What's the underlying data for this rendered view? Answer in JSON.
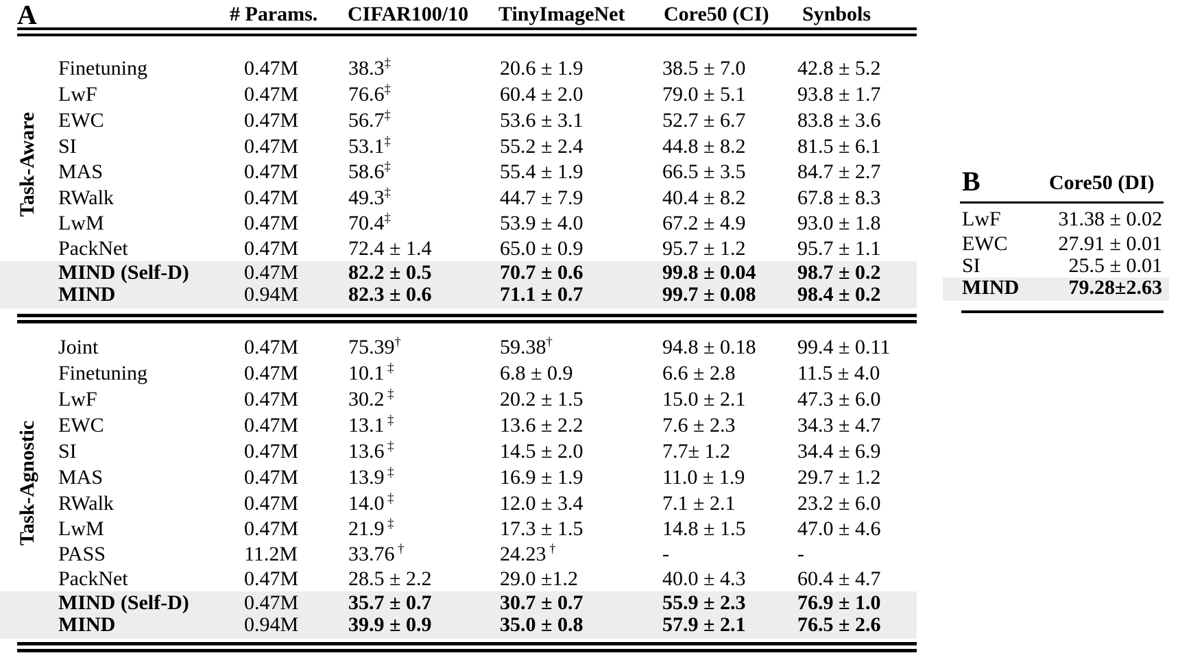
{
  "tableA": {
    "label": "A",
    "columns": [
      "# Params.",
      "CIFAR100/10",
      "TinyImageNet",
      "Core50 (CI)",
      "Synbols"
    ],
    "highlight_color": "#ededed",
    "sections": [
      {
        "side_label": "Task-Aware",
        "rows": [
          {
            "method": "Finetuning",
            "params": "0.47M",
            "bold": false,
            "highlight": false,
            "cells": [
              {
                "t": "38.3",
                "sup": "‡"
              },
              {
                "t": "20.6 ± 1.9"
              },
              {
                "t": "38.5 ± 7.0"
              },
              {
                "t": "42.8 ± 5.2"
              }
            ]
          },
          {
            "method": "LwF",
            "params": "0.47M",
            "bold": false,
            "highlight": false,
            "cells": [
              {
                "t": "76.6",
                "sup": "‡"
              },
              {
                "t": "60.4 ± 2.0"
              },
              {
                "t": "79.0 ± 5.1"
              },
              {
                "t": "93.8 ± 1.7"
              }
            ]
          },
          {
            "method": "EWC",
            "params": "0.47M",
            "bold": false,
            "highlight": false,
            "cells": [
              {
                "t": "56.7",
                "sup": "‡"
              },
              {
                "t": "53.6 ± 3.1"
              },
              {
                "t": "52.7 ± 6.7"
              },
              {
                "t": "83.8 ± 3.6"
              }
            ]
          },
          {
            "method": "SI",
            "params": "0.47M",
            "bold": false,
            "highlight": false,
            "cells": [
              {
                "t": "53.1",
                "sup": "‡"
              },
              {
                "t": "55.2 ± 2.4"
              },
              {
                "t": "44.8 ± 8.2"
              },
              {
                "t": "81.5 ± 6.1"
              }
            ]
          },
          {
            "method": "MAS",
            "params": "0.47M",
            "bold": false,
            "highlight": false,
            "cells": [
              {
                "t": "58.6",
                "sup": "‡"
              },
              {
                "t": "55.4 ± 1.9"
              },
              {
                "t": "66.5 ± 3.5"
              },
              {
                "t": "84.7 ± 2.7"
              }
            ]
          },
          {
            "method": "RWalk",
            "params": "0.47M",
            "bold": false,
            "highlight": false,
            "cells": [
              {
                "t": "49.3",
                "sup": "‡"
              },
              {
                "t": "44.7 ± 7.9"
              },
              {
                "t": "40.4 ± 8.2"
              },
              {
                "t": "67.8 ± 8.3"
              }
            ]
          },
          {
            "method": "LwM",
            "params": "0.47M",
            "bold": false,
            "highlight": false,
            "cells": [
              {
                "t": "70.4",
                "sup": "‡"
              },
              {
                "t": "53.9 ± 4.0"
              },
              {
                "t": "67.2 ± 4.9"
              },
              {
                "t": "93.0 ± 1.8"
              }
            ]
          },
          {
            "method": "PackNet",
            "params": "0.47M",
            "bold": false,
            "highlight": false,
            "cells": [
              {
                "t": "72.4 ± 1.4"
              },
              {
                "t": "65.0 ± 0.9"
              },
              {
                "t": "95.7 ± 1.2"
              },
              {
                "t": "95.7 ± 1.1"
              }
            ]
          },
          {
            "method": "MIND (Self-D)",
            "params": "0.47M",
            "bold": true,
            "highlight": true,
            "cells": [
              {
                "t": "82.2 ± 0.5"
              },
              {
                "t": "70.7 ± 0.6"
              },
              {
                "t": "99.8 ± 0.04"
              },
              {
                "t": "98.7 ± 0.2"
              }
            ]
          },
          {
            "method": "MIND",
            "params": "0.94M",
            "bold": true,
            "highlight": true,
            "cells": [
              {
                "t": "82.3 ± 0.6"
              },
              {
                "t": "71.1 ± 0.7"
              },
              {
                "t": "99.7 ± 0.08"
              },
              {
                "t": "98.4 ± 0.2"
              }
            ]
          }
        ]
      },
      {
        "side_label": "Task-Agnostic",
        "rows": [
          {
            "method": "Joint",
            "params": "0.47M",
            "bold": false,
            "highlight": false,
            "cells": [
              {
                "t": "75.39",
                "sup": "†"
              },
              {
                "t": "59.38",
                "sup": "†"
              },
              {
                "t": "94.8 ± 0.18"
              },
              {
                "t": "99.4 ± 0.11"
              }
            ]
          },
          {
            "method": "Finetuning",
            "params": "0.47M",
            "bold": false,
            "highlight": false,
            "cells": [
              {
                "t": "10.1",
                "sup": " ‡"
              },
              {
                "t": "6.8 ± 0.9"
              },
              {
                "t": "6.6 ± 2.8"
              },
              {
                "t": "11.5 ± 4.0"
              }
            ]
          },
          {
            "method": "LwF",
            "params": "0.47M",
            "bold": false,
            "highlight": false,
            "cells": [
              {
                "t": "30.2",
                "sup": " ‡"
              },
              {
                "t": "20.2 ± 1.5"
              },
              {
                "t": "15.0 ± 2.1"
              },
              {
                "t": "47.3 ± 6.0"
              }
            ]
          },
          {
            "method": "EWC",
            "params": "0.47M",
            "bold": false,
            "highlight": false,
            "cells": [
              {
                "t": "13.1",
                "sup": " ‡"
              },
              {
                "t": "13.6 ± 2.2"
              },
              {
                "t": "7.6 ± 2.3"
              },
              {
                "t": "34.3 ± 4.7"
              }
            ]
          },
          {
            "method": "SI",
            "params": "0.47M",
            "bold": false,
            "highlight": false,
            "cells": [
              {
                "t": "13.6",
                "sup": " ‡"
              },
              {
                "t": "14.5 ± 2.0"
              },
              {
                "t": "7.7± 1.2"
              },
              {
                "t": "34.4 ± 6.9"
              }
            ]
          },
          {
            "method": "MAS",
            "params": "0.47M",
            "bold": false,
            "highlight": false,
            "cells": [
              {
                "t": "13.9",
                "sup": " ‡"
              },
              {
                "t": "16.9 ± 1.9"
              },
              {
                "t": "11.0 ± 1.9"
              },
              {
                "t": "29.7 ± 1.2"
              }
            ]
          },
          {
            "method": "RWalk",
            "params": "0.47M",
            "bold": false,
            "highlight": false,
            "cells": [
              {
                "t": "14.0",
                "sup": " ‡"
              },
              {
                "t": "12.0 ± 3.4"
              },
              {
                "t": "7.1 ± 2.1"
              },
              {
                "t": "23.2 ± 6.0"
              }
            ]
          },
          {
            "method": "LwM",
            "params": "0.47M",
            "bold": false,
            "highlight": false,
            "cells": [
              {
                "t": "21.9",
                "sup": " ‡"
              },
              {
                "t": "17.3 ± 1.5"
              },
              {
                "t": "14.8 ± 1.5"
              },
              {
                "t": "47.0 ± 4.6"
              }
            ]
          },
          {
            "method": "PASS",
            "params": "11.2M",
            "bold": false,
            "highlight": false,
            "cells": [
              {
                "t": "33.76",
                "sup": " †"
              },
              {
                "t": "24.23",
                "sup": " †"
              },
              {
                "t": "-"
              },
              {
                "t": "-"
              }
            ]
          },
          {
            "method": "PackNet",
            "params": "0.47M",
            "bold": false,
            "highlight": false,
            "cells": [
              {
                "t": "28.5 ± 2.2"
              },
              {
                "t": "29.0 ±1.2"
              },
              {
                "t": "40.0 ± 4.3"
              },
              {
                "t": "60.4 ± 4.7"
              }
            ]
          },
          {
            "method": "MIND (Self-D)",
            "params": "0.47M",
            "bold": true,
            "highlight": true,
            "cells": [
              {
                "t": "35.7 ± 0.7"
              },
              {
                "t": "30.7 ± 0.7"
              },
              {
                "t": "55.9 ± 2.3"
              },
              {
                "t": "76.9 ± 1.0"
              }
            ]
          },
          {
            "method": "MIND",
            "params": "0.94M",
            "bold": true,
            "highlight": true,
            "cells": [
              {
                "t": "39.9 ± 0.9"
              },
              {
                "t": "35.0 ± 0.8"
              },
              {
                "t": "57.9 ± 2.1"
              },
              {
                "t": "76.5 ± 2.6"
              }
            ]
          }
        ]
      }
    ]
  },
  "tableB": {
    "label": "B",
    "column": "Core50 (DI)",
    "rows": [
      {
        "method": "LwF",
        "value": "31.38 ± 0.02",
        "bold": false,
        "highlight": false
      },
      {
        "method": "EWC",
        "value": "27.91 ± 0.01",
        "bold": false,
        "highlight": false
      },
      {
        "method": "SI",
        "value": "25.5 ± 0.01",
        "bold": false,
        "highlight": false
      },
      {
        "method": "MIND",
        "value": "79.28±2.63",
        "bold": true,
        "highlight": true
      }
    ]
  }
}
